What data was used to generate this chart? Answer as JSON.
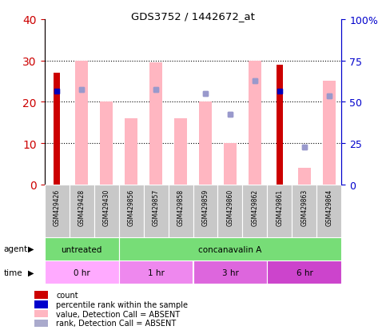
{
  "title": "GDS3752 / 1442672_at",
  "samples": [
    "GSM429426",
    "GSM429428",
    "GSM429430",
    "GSM429856",
    "GSM429857",
    "GSM429858",
    "GSM429859",
    "GSM429860",
    "GSM429862",
    "GSM429861",
    "GSM429863",
    "GSM429864"
  ],
  "count_values": [
    27,
    0,
    0,
    0,
    0,
    0,
    0,
    0,
    0,
    29,
    0,
    0
  ],
  "pink_bar_values": [
    0,
    30,
    20,
    16,
    29.5,
    16,
    20,
    10,
    30,
    0,
    4,
    25
  ],
  "blue_rank_values": [
    22.5,
    23,
    0,
    0,
    23,
    0,
    22,
    17,
    25,
    22.5,
    9,
    21.5
  ],
  "has_red_bar": [
    true,
    false,
    false,
    false,
    false,
    false,
    false,
    false,
    false,
    true,
    false,
    false
  ],
  "has_blue_pct": [
    true,
    true,
    false,
    false,
    true,
    false,
    true,
    true,
    true,
    true,
    true,
    true
  ],
  "blue_pct_values": [
    22.5,
    23,
    0,
    0,
    23,
    0,
    22,
    17,
    25,
    22.5,
    9,
    21.5
  ],
  "left_ylim": [
    0,
    40
  ],
  "left_yticks": [
    0,
    10,
    20,
    30,
    40
  ],
  "right_ylim": [
    0,
    100
  ],
  "right_yticks": [
    0,
    25,
    50,
    75,
    100
  ],
  "right_yticklabels": [
    "0",
    "25",
    "50",
    "75",
    "100%"
  ],
  "grid_lines": [
    10,
    20,
    30
  ],
  "agent_groups": [
    {
      "label": "untreated",
      "start": 0,
      "end": 3,
      "color": "#77dd77"
    },
    {
      "label": "concanavalin A",
      "start": 3,
      "end": 12,
      "color": "#77dd77"
    }
  ],
  "time_groups": [
    {
      "label": "0 hr",
      "start": 0,
      "end": 3,
      "color": "#ffaaff"
    },
    {
      "label": "1 hr",
      "start": 3,
      "end": 6,
      "color": "#ee88ee"
    },
    {
      "label": "3 hr",
      "start": 6,
      "end": 9,
      "color": "#dd66dd"
    },
    {
      "label": "6 hr",
      "start": 9,
      "end": 12,
      "color": "#cc44cc"
    }
  ],
  "legend_items": [
    {
      "label": "count",
      "color": "#cc0000"
    },
    {
      "label": "percentile rank within the sample",
      "color": "#0000cc"
    },
    {
      "label": "value, Detection Call = ABSENT",
      "color": "#ffb6c1"
    },
    {
      "label": "rank, Detection Call = ABSENT",
      "color": "#aaaacc"
    }
  ],
  "pink_bar_color": "#ffb6c1",
  "red_bar_color": "#cc0000",
  "blue_pct_color": "#0000bb",
  "blue_rank_color": "#9999cc",
  "bg_color": "#ffffff",
  "left_tick_color": "#cc0000",
  "right_tick_color": "#0000cc",
  "bar_width": 0.5
}
